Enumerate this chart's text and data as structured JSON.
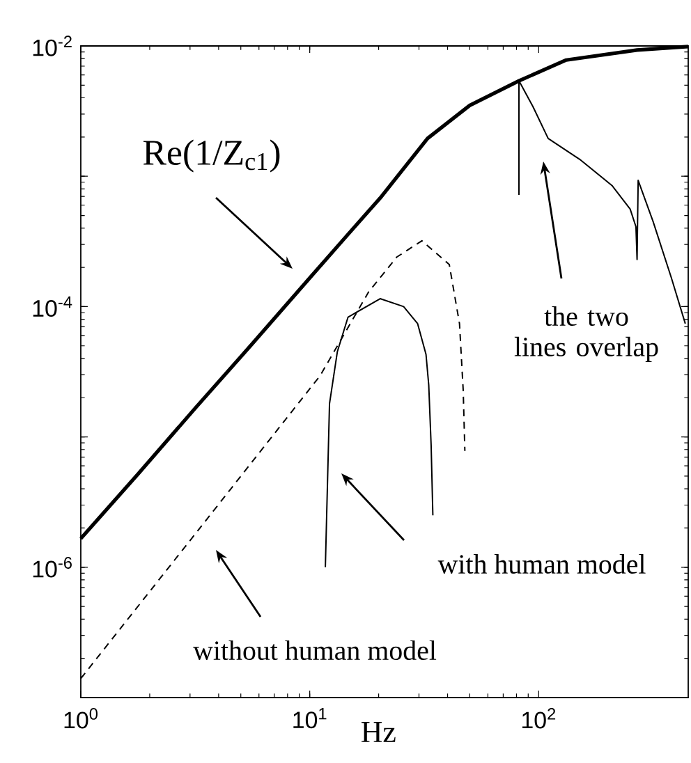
{
  "chart_data": {
    "type": "line",
    "log": "xy",
    "xlabel": "Hz",
    "marker": "none",
    "xlim": [
      1,
      450
    ],
    "ylim": [
      1e-07,
      0.01
    ],
    "xticks": [
      {
        "value": 1,
        "label": "10$^{0}$"
      },
      {
        "value": 10,
        "label": "10$^{1}$"
      },
      {
        "value": 100,
        "label": "10$^{2}$"
      }
    ],
    "yticks": [
      {
        "value": 1e-07,
        "label": null
      },
      {
        "value": 1e-06,
        "label": "10$^{-6}$"
      },
      {
        "value": 1e-05,
        "label": null
      },
      {
        "value": 0.0001,
        "label": "10$^{-4}$"
      },
      {
        "value": 0.001,
        "label": null
      },
      {
        "value": 0.01,
        "label": "10$^{-2}$"
      }
    ],
    "series": [
      {
        "color": "#000000",
        "line_style": "solid",
        "x": [
          1,
          1.78,
          3.16,
          5.62,
          10,
          14.1,
          20.3,
          32.7,
          50,
          82,
          132,
          269,
          450
        ],
        "values": [
          1.66e-06,
          5.2e-06,
          1.66e-05,
          5.2e-05,
          0.000166,
          0.00033,
          0.00068,
          0.00195,
          0.0035,
          0.0054,
          0.0078,
          0.0093,
          0.0099
        ]
      },
      {
        "color": "#000000",
        "line_style": "dashed",
        "x": [
          1,
          3.16,
          11.1,
          18.1,
          24,
          30.9,
          40.7,
          45.1,
          46.8,
          47.6
        ],
        "values": [
          1.4e-07,
          1.8e-06,
          2.95e-05,
          0.00013,
          0.00024,
          0.00032,
          0.00021,
          7.4e-05,
          2.3e-05,
          7.8e-06
        ]
      },
      {
        "color": "#000000",
        "line_style": "solid",
        "x": [
          11.7,
          12.2,
          13.2,
          14.7,
          20.3,
          25.7,
          29.6,
          32.2,
          33.1,
          33.9,
          34.5,
          50,
          82,
          82,
          94.6,
          110,
          151,
          209,
          251,
          266,
          269,
          272,
          316,
          380,
          437
        ],
        "values": [
          1e-06,
          1.8e-05,
          4.5e-05,
          8.3e-05,
          0.000115,
          0.0001,
          7.4e-05,
          4.3e-05,
          2.5e-05,
          8.7e-06,
          2.5e-06,
          null,
          0.00072,
          0.0054,
          0.0034,
          0.00195,
          0.00135,
          0.00085,
          0.00056,
          0.00041,
          0.00023,
          0.00093,
          0.00045,
          0.000166,
          7.4e-05
        ]
      }
    ],
    "annotations": [
      "Re(1/Z$_{c1}$)",
      "the two lines overlap",
      "with human model",
      "without human model"
    ]
  }
}
